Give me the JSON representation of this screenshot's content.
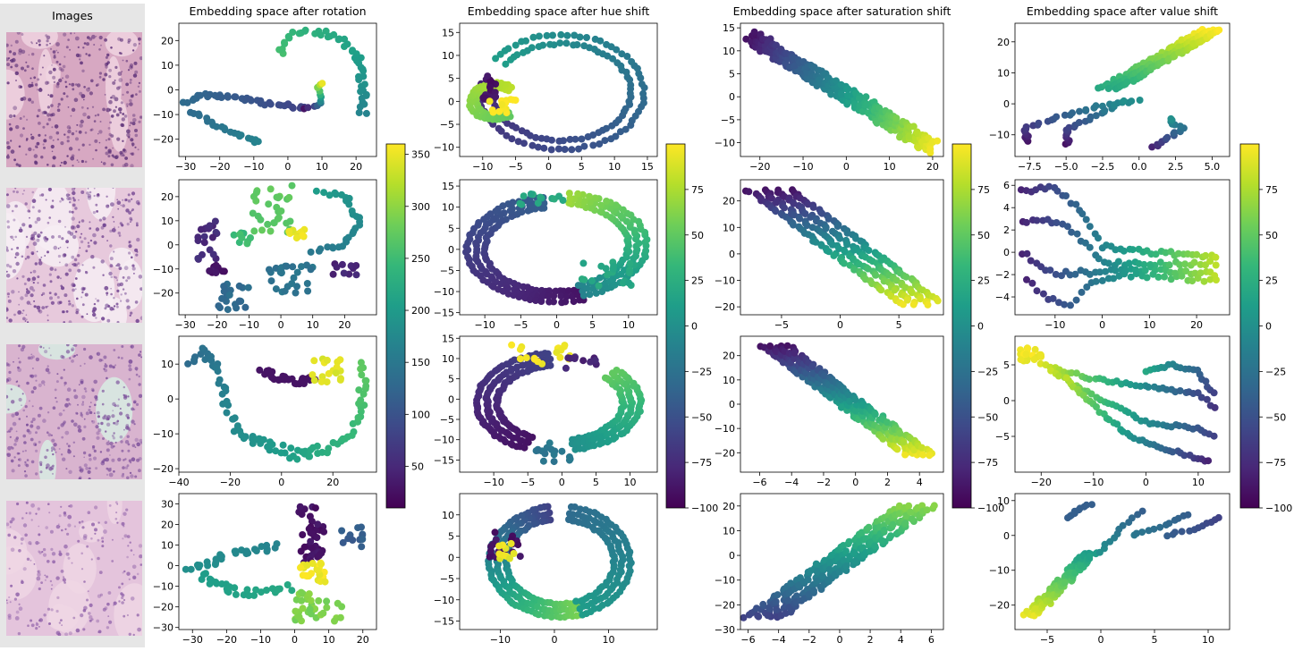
{
  "images": {
    "title": "Images",
    "tiles": [
      {
        "name": "tissue-tile-1",
        "bg": "#d7a8c2",
        "nuclei": "#5b2f77",
        "accent": "#f0d3e0",
        "pattern": "glands"
      },
      {
        "name": "tissue-tile-2",
        "bg": "#e7c9dc",
        "nuclei": "#6a3c8c",
        "accent": "#f6edf3",
        "pattern": "dense"
      },
      {
        "name": "tissue-tile-3",
        "bg": "#d9b4cf",
        "nuclei": "#7a4d9a",
        "accent": "#d7ece3",
        "pattern": "stroma"
      },
      {
        "name": "tissue-tile-4",
        "bg": "#e4c4dc",
        "nuclei": "#8a5ba6",
        "accent": "#efd6e4",
        "pattern": "sparse"
      }
    ]
  },
  "chart_data": [
    {
      "type": "scatter",
      "title": "Embedding space after rotation",
      "x_ticks": [
        -30,
        -20,
        -10,
        0,
        10,
        20
      ],
      "y_ticks": [
        -20,
        -10,
        0,
        10,
        20
      ],
      "xlim": [
        -32,
        26
      ],
      "ylim": [
        -27,
        27
      ],
      "colormap": "viridis",
      "shape": "rotation_1",
      "n_points": 120
    },
    {
      "type": "scatter",
      "title": "Embedding space after hue shift",
      "x_ticks": [
        -10,
        -5,
        0,
        5,
        10,
        15
      ],
      "y_ticks": [
        -10,
        -5,
        0,
        5,
        10,
        15
      ],
      "xlim": [
        -13.5,
        16.5
      ],
      "ylim": [
        -12,
        17
      ],
      "colormap": "viridis",
      "shape": "hue_1",
      "n_points": 130
    },
    {
      "type": "scatter",
      "title": "Embedding space after saturation shift",
      "x_ticks": [
        -20,
        -10,
        0,
        10,
        20
      ],
      "y_ticks": [
        -10,
        -5,
        0,
        5,
        10,
        15
      ],
      "xlim": [
        -24.5,
        22.5
      ],
      "ylim": [
        -13,
        16
      ],
      "colormap": "viridis",
      "shape": "sat_1",
      "n_points": 200
    },
    {
      "type": "scatter",
      "title": "Embedding space after value shift",
      "x_ticks": [
        -7.5,
        -5.0,
        -2.5,
        0.0,
        2.5,
        5.0
      ],
      "y_ticks": [
        -10,
        0,
        10,
        20
      ],
      "xlim": [
        -8.5,
        6.2
      ],
      "ylim": [
        -17,
        26
      ],
      "colormap": "viridis",
      "shape": "val_1",
      "n_points": 150
    },
    {
      "type": "scatter",
      "title": "",
      "x_ticks": [
        -30,
        -20,
        -10,
        0,
        10,
        20
      ],
      "y_ticks": [
        -20,
        -10,
        0,
        10,
        20
      ],
      "xlim": [
        -32,
        30
      ],
      "ylim": [
        -29,
        27
      ],
      "colormap": "viridis",
      "shape": "rotation_2",
      "n_points": 160
    },
    {
      "type": "scatter",
      "title": "",
      "x_ticks": [
        -10,
        -5,
        0,
        5,
        10
      ],
      "y_ticks": [
        -15,
        -10,
        -5,
        0,
        5,
        10,
        15
      ],
      "xlim": [
        -13.5,
        14
      ],
      "ylim": [
        -15.5,
        16.5
      ],
      "colormap": "viridis",
      "shape": "hue_2",
      "n_points": 150
    },
    {
      "type": "scatter",
      "title": "",
      "x_ticks": [
        -5,
        0,
        5
      ],
      "y_ticks": [
        -20,
        -10,
        0,
        10,
        20
      ],
      "xlim": [
        -8.5,
        8.8
      ],
      "ylim": [
        -23,
        28
      ],
      "colormap": "viridis",
      "shape": "sat_2",
      "n_points": 180
    },
    {
      "type": "scatter",
      "title": "",
      "x_ticks": [
        -10,
        0,
        10,
        20
      ],
      "y_ticks": [
        -4,
        -2,
        0,
        2,
        4,
        6
      ],
      "xlim": [
        -18.5,
        27
      ],
      "ylim": [
        -5.6,
        6.5
      ],
      "colormap": "viridis",
      "shape": "val_2",
      "n_points": 160
    },
    {
      "type": "scatter",
      "title": "",
      "x_ticks": [
        -40,
        -20,
        0,
        20
      ],
      "y_ticks": [
        -20,
        -10,
        0,
        10
      ],
      "xlim": [
        -40,
        37
      ],
      "ylim": [
        -21,
        18
      ],
      "colormap": "viridis",
      "shape": "rotation_3",
      "n_points": 160
    },
    {
      "type": "scatter",
      "title": "",
      "x_ticks": [
        -10,
        -5,
        0,
        5,
        10
      ],
      "y_ticks": [
        -15,
        -10,
        -5,
        0,
        5,
        10,
        15
      ],
      "xlim": [
        -15,
        14
      ],
      "ylim": [
        -18,
        15.5
      ],
      "colormap": "viridis",
      "shape": "hue_3",
      "n_points": 150
    },
    {
      "type": "scatter",
      "title": "",
      "x_ticks": [
        -6,
        -4,
        -2,
        0,
        2,
        4
      ],
      "y_ticks": [
        -20,
        -10,
        0,
        10,
        20
      ],
      "xlim": [
        -7.2,
        5.5
      ],
      "ylim": [
        -28,
        28
      ],
      "colormap": "viridis",
      "shape": "sat_3",
      "n_points": 180
    },
    {
      "type": "scatter",
      "title": "",
      "x_ticks": [
        -20,
        -10,
        0,
        10
      ],
      "y_ticks": [
        -5,
        0,
        5
      ],
      "xlim": [
        -25,
        16
      ],
      "ylim": [
        -10,
        9
      ],
      "colormap": "viridis",
      "shape": "val_3",
      "n_points": 160
    },
    {
      "type": "scatter",
      "title": "",
      "x_ticks": [
        -30,
        -20,
        -10,
        0,
        10,
        20
      ],
      "y_ticks": [
        -30,
        -20,
        -10,
        0,
        10,
        20,
        30
      ],
      "xlim": [
        -34,
        24
      ],
      "ylim": [
        -31,
        35
      ],
      "colormap": "viridis",
      "shape": "rotation_4",
      "n_points": 170
    },
    {
      "type": "scatter",
      "title": "",
      "x_ticks": [
        -10,
        0,
        10
      ],
      "y_ticks": [
        -15,
        -10,
        -5,
        0,
        5,
        10
      ],
      "xlim": [
        -17.5,
        19
      ],
      "ylim": [
        -17,
        15
      ],
      "colormap": "viridis",
      "shape": "hue_4",
      "n_points": 150
    },
    {
      "type": "scatter",
      "title": "",
      "x_ticks": [
        -6,
        -4,
        -2,
        0,
        2,
        4,
        6
      ],
      "y_ticks": [
        -30,
        -20,
        -10,
        0,
        10,
        20
      ],
      "xlim": [
        -6.5,
        6.8
      ],
      "ylim": [
        -30,
        25
      ],
      "colormap": "viridis",
      "shape": "sat_4",
      "n_points": 180
    },
    {
      "type": "scatter",
      "title": "",
      "x_ticks": [
        -5,
        0,
        5,
        10
      ],
      "y_ticks": [
        -20,
        -10,
        0,
        10
      ],
      "xlim": [
        -8,
        12
      ],
      "ylim": [
        -27,
        12
      ],
      "colormap": "viridis",
      "shape": "val_4",
      "n_points": 160
    }
  ],
  "colorbars": [
    {
      "name": "colorbar-rotation",
      "ticks": [
        50,
        100,
        150,
        200,
        250,
        300,
        350
      ],
      "range": [
        10,
        360
      ]
    },
    {
      "name": "colorbar-hue",
      "ticks": [
        -100,
        -75,
        -50,
        -25,
        0,
        25,
        50,
        75
      ],
      "range": [
        -100,
        100
      ]
    },
    {
      "name": "colorbar-saturation",
      "ticks": [
        -100,
        -75,
        -50,
        -25,
        0,
        25,
        50,
        75
      ],
      "range": [
        -100,
        100
      ]
    },
    {
      "name": "colorbar-value",
      "ticks": [
        -100,
        -75,
        -50,
        -25,
        0,
        25,
        50,
        75
      ],
      "range": [
        -100,
        100
      ]
    }
  ],
  "colors": {
    "viridis": [
      "#440154",
      "#482878",
      "#3e4989",
      "#31688e",
      "#26828e",
      "#1f9e89",
      "#35b779",
      "#6ece58",
      "#b5de2b",
      "#fde725"
    ],
    "axis": "#000000"
  }
}
